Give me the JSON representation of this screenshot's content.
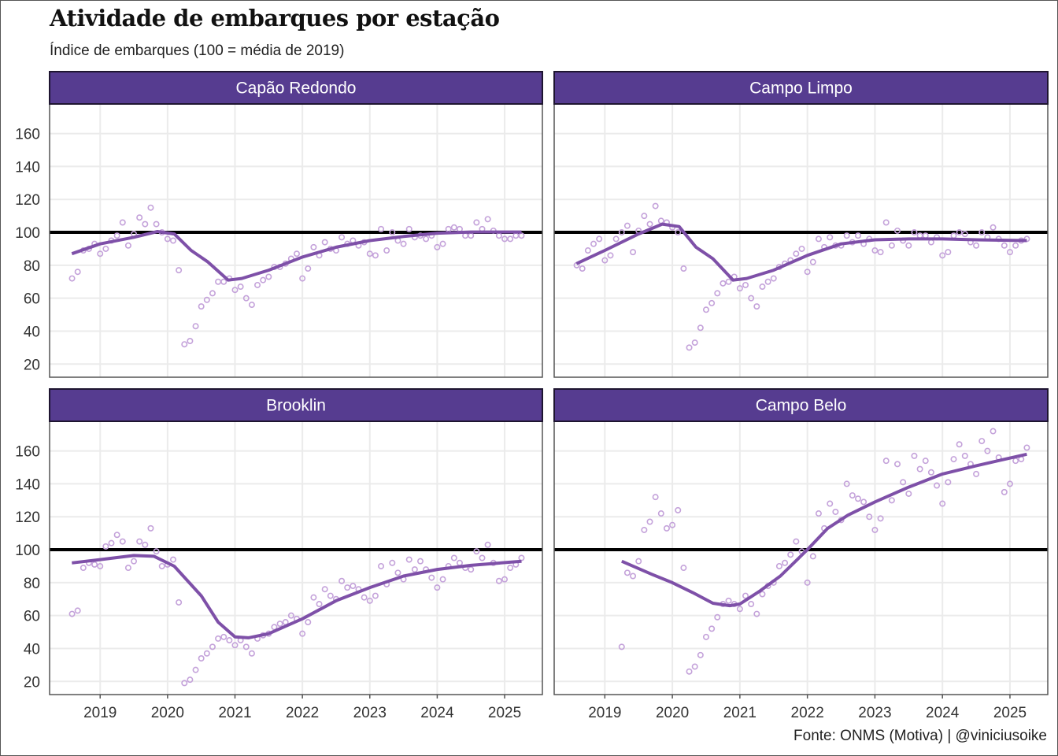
{
  "header": {
    "title": "Atividade de embarques por estação",
    "subtitle": "Índice de embarques (100 = média de 2019)"
  },
  "caption": "Fonte: ONMS (Motiva) | @viniciusoike",
  "colors": {
    "strip_fill": "#563C90",
    "strip_border": "#1E1530",
    "point": "#C4A2DA",
    "smooth_line": "#7E50A8",
    "reference_line": "#000000",
    "grid": "#EBEBEB",
    "panel_border": "#555555"
  },
  "chart_data": {
    "type": "scatter",
    "facets": "2x2",
    "title": "Atividade de embarques por estação",
    "subtitle": "Índice de embarques (100 = média de 2019)",
    "xlabel": "",
    "ylabel": "",
    "xlim": [
      2018.25,
      2025.56
    ],
    "ylim": [
      12,
      178
    ],
    "x_ticks": [
      2019,
      2020,
      2021,
      2022,
      2023,
      2024,
      2025
    ],
    "y_ticks": [
      20,
      40,
      60,
      80,
      100,
      120,
      140,
      160
    ],
    "reference_line": 100,
    "grid": true,
    "legend": "none",
    "panels": [
      {
        "name": "Capão Redondo",
        "start": "2018-08",
        "values": [
          72,
          76,
          89,
          90,
          93,
          87,
          90,
          95,
          98,
          106,
          92,
          99,
          109,
          105,
          115,
          105,
          100,
          96,
          95,
          77,
          32,
          34,
          43,
          55,
          59,
          63,
          70,
          70,
          72,
          65,
          67,
          60,
          56,
          68,
          71,
          73,
          79,
          79,
          81,
          84,
          87,
          72,
          78,
          91,
          86,
          94,
          90,
          89,
          97,
          93,
          95,
          92,
          94,
          87,
          86,
          102,
          89,
          100,
          95,
          93,
          102,
          97,
          98,
          96,
          98,
          91,
          93,
          102,
          103,
          102,
          98,
          98,
          106,
          102,
          108,
          101,
          98,
          96,
          96,
          98,
          98
        ],
        "smooth": [
          [
            2018.58,
            87
          ],
          [
            2019.0,
            93
          ],
          [
            2019.5,
            97
          ],
          [
            2019.85,
            100.5
          ],
          [
            2020.1,
            99
          ],
          [
            2020.35,
            89
          ],
          [
            2020.6,
            82
          ],
          [
            2020.9,
            71
          ],
          [
            2021.1,
            72
          ],
          [
            2021.5,
            77
          ],
          [
            2022.0,
            85
          ],
          [
            2022.5,
            91
          ],
          [
            2023.0,
            95
          ],
          [
            2023.5,
            97.5
          ],
          [
            2024.0,
            99.5
          ],
          [
            2024.5,
            100.2
          ],
          [
            2025.25,
            100.2
          ]
        ]
      },
      {
        "name": "Campo Limpo",
        "start": "2018-08",
        "values": [
          80,
          78,
          89,
          93,
          96,
          83,
          86,
          96,
          100,
          104,
          88,
          101,
          110,
          105,
          116,
          107,
          106,
          103,
          100,
          78,
          30,
          33,
          42,
          53,
          57,
          63,
          69,
          70,
          73,
          66,
          68,
          60,
          55,
          67,
          70,
          72,
          79,
          81,
          83,
          87,
          90,
          76,
          82,
          96,
          91,
          97,
          92,
          92,
          98,
          94,
          98,
          93,
          96,
          89,
          88,
          106,
          92,
          101,
          95,
          92,
          100,
          98,
          98,
          94,
          97,
          86,
          88,
          98,
          100,
          99,
          94,
          92,
          100,
          97,
          103,
          96,
          92,
          88,
          92,
          95,
          96
        ],
        "smooth": [
          [
            2018.58,
            81
          ],
          [
            2019.0,
            89
          ],
          [
            2019.5,
            99
          ],
          [
            2019.85,
            105
          ],
          [
            2020.1,
            103.5
          ],
          [
            2020.35,
            91
          ],
          [
            2020.6,
            84
          ],
          [
            2020.9,
            71
          ],
          [
            2021.1,
            72
          ],
          [
            2021.5,
            77
          ],
          [
            2022.0,
            86
          ],
          [
            2022.5,
            93
          ],
          [
            2023.0,
            95.5
          ],
          [
            2023.5,
            96
          ],
          [
            2024.0,
            96
          ],
          [
            2024.5,
            95.5
          ],
          [
            2025.25,
            95
          ]
        ]
      },
      {
        "name": "Brooklin",
        "start": "2018-08",
        "values": [
          61,
          63,
          89,
          92,
          91,
          90,
          102,
          104,
          109,
          105,
          89,
          93,
          105,
          103,
          113,
          99,
          90,
          91,
          94,
          68,
          19,
          21,
          27,
          34,
          37,
          41,
          46,
          47,
          45,
          42,
          45,
          41,
          37,
          46,
          48,
          49,
          53,
          55,
          56,
          60,
          58,
          49,
          56,
          71,
          67,
          76,
          72,
          70,
          81,
          77,
          78,
          76,
          71,
          69,
          72,
          90,
          79,
          92,
          86,
          82,
          94,
          88,
          93,
          88,
          83,
          77,
          82,
          90,
          95,
          92,
          89,
          88,
          99,
          95,
          103,
          92,
          81,
          82,
          89,
          91,
          95
        ],
        "smooth": [
          [
            2018.58,
            92
          ],
          [
            2019.0,
            94
          ],
          [
            2019.5,
            96.5
          ],
          [
            2019.8,
            96
          ],
          [
            2020.1,
            90
          ],
          [
            2020.5,
            72
          ],
          [
            2020.75,
            56
          ],
          [
            2021.0,
            47
          ],
          [
            2021.2,
            46.5
          ],
          [
            2021.5,
            49
          ],
          [
            2022.0,
            58
          ],
          [
            2022.5,
            69
          ],
          [
            2023.0,
            77
          ],
          [
            2023.5,
            84
          ],
          [
            2024.0,
            88
          ],
          [
            2024.5,
            90.5
          ],
          [
            2025.25,
            93
          ]
        ]
      },
      {
        "name": "Campo Belo",
        "start": "2019-04",
        "values": [
          41,
          86,
          84,
          93,
          112,
          117,
          132,
          122,
          113,
          115,
          124,
          89,
          26,
          29,
          36,
          47,
          52,
          59,
          67,
          69,
          67,
          64,
          72,
          67,
          61,
          73,
          78,
          80,
          90,
          92,
          97,
          105,
          99,
          80,
          96,
          122,
          113,
          128,
          123,
          118,
          140,
          133,
          131,
          129,
          120,
          112,
          119,
          154,
          130,
          152,
          141,
          134,
          157,
          149,
          154,
          147,
          139,
          128,
          141,
          155,
          164,
          157,
          152,
          146,
          166,
          160,
          172,
          156,
          135,
          140,
          154,
          155,
          162
        ],
        "smooth": [
          [
            2019.25,
            93
          ],
          [
            2019.7,
            85
          ],
          [
            2020.0,
            80
          ],
          [
            2020.3,
            74
          ],
          [
            2020.6,
            67.5
          ],
          [
            2020.85,
            66
          ],
          [
            2021.0,
            67
          ],
          [
            2021.3,
            75
          ],
          [
            2021.6,
            84
          ],
          [
            2022.0,
            100
          ],
          [
            2022.3,
            113
          ],
          [
            2022.6,
            121
          ],
          [
            2023.0,
            129
          ],
          [
            2023.5,
            138
          ],
          [
            2024.0,
            146
          ],
          [
            2024.5,
            151
          ],
          [
            2025.25,
            158
          ]
        ]
      }
    ]
  }
}
